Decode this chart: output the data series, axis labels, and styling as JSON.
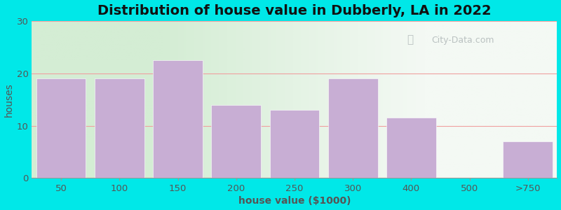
{
  "title": "Distribution of house value in Dubberly, LA in 2022",
  "xlabel": "house value ($1000)",
  "ylabel": "houses",
  "categories": [
    "50",
    "100",
    "150",
    "200",
    "250",
    "300",
    "400",
    "500",
    ">750"
  ],
  "values": [
    19,
    19,
    22.5,
    14,
    13,
    19,
    11.5,
    0,
    7
  ],
  "bar_color": "#c8aed4",
  "background_outer": "#00e8e8",
  "plot_bg_left": "#d6efd6",
  "plot_bg_right": "#f4f8f6",
  "ylim": [
    0,
    30
  ],
  "yticks": [
    0,
    10,
    20,
    30
  ],
  "grid_color": "#f0a0a0",
  "title_fontsize": 14,
  "label_fontsize": 10,
  "tick_fontsize": 9.5,
  "watermark_text": "City-Data.com",
  "watermark_icon": "ⓘ"
}
